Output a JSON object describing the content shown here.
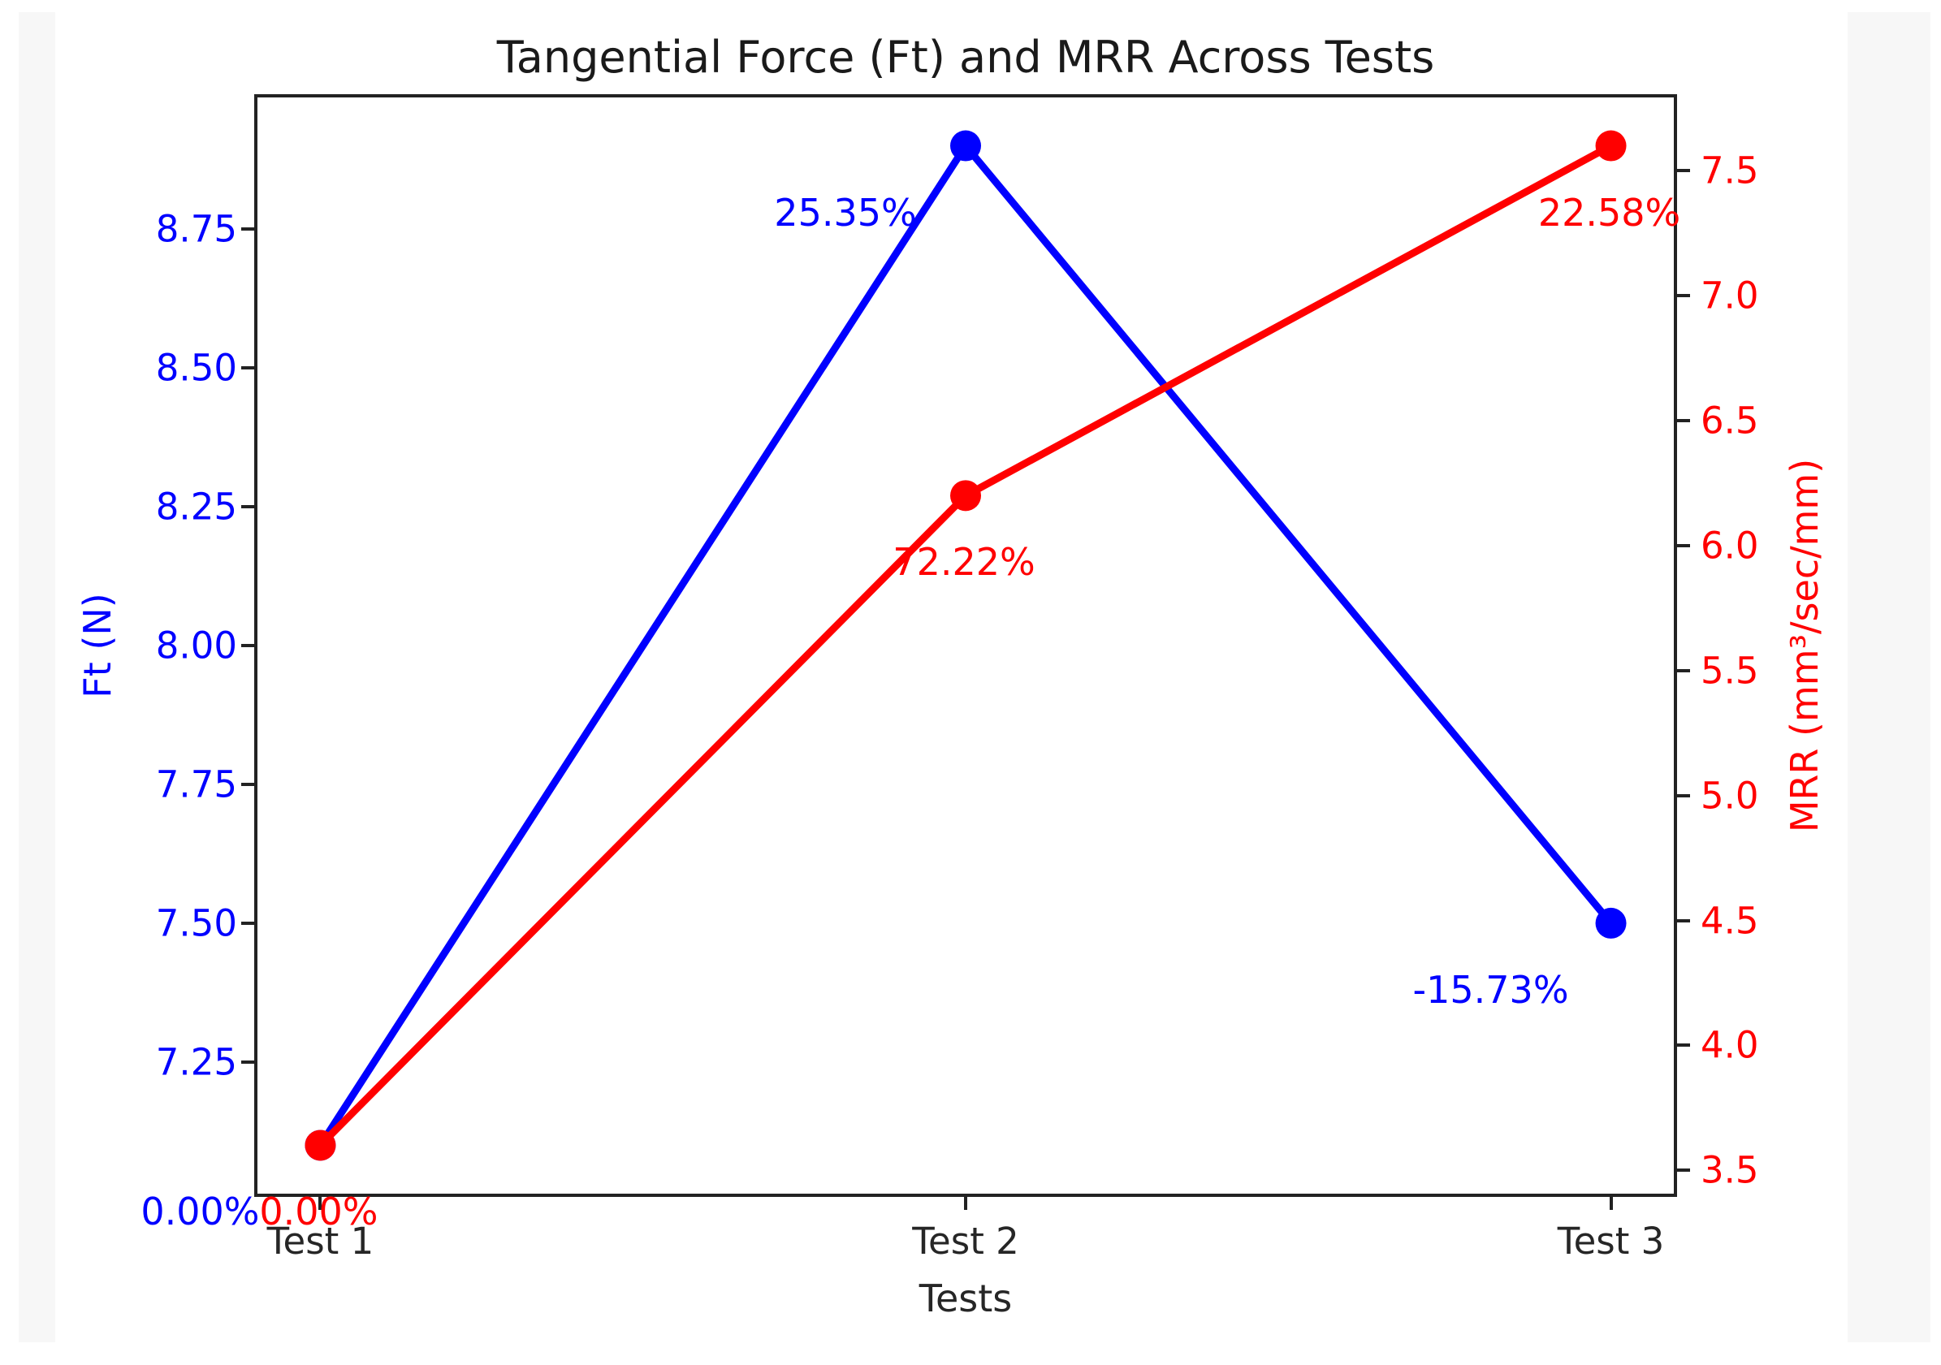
{
  "page": {
    "background_color": "#ffffff",
    "panel_color": "#f7f7f7"
  },
  "chart_data": {
    "type": "line",
    "title": "Tangential Force (Ft) and MRR Across Tests",
    "xlabel": "Tests",
    "categories": [
      "Test 1",
      "Test 2",
      "Test 3"
    ],
    "series": [
      {
        "name": "Ft",
        "axis": "left",
        "color": "#0000ff",
        "values": [
          7.1,
          8.9,
          7.5
        ],
        "annotations": [
          "0.00%",
          "25.35%",
          "-15.73%"
        ]
      },
      {
        "name": "MRR",
        "axis": "right",
        "color": "#ff0000",
        "values": [
          3.6,
          6.2,
          7.6
        ],
        "annotations": [
          "0.00%",
          "72.22%",
          "22.58%"
        ]
      }
    ],
    "left_axis": {
      "label": "Ft (N)",
      "color": "#0000ff",
      "range": [
        7.01,
        8.99
      ],
      "tick_labels": [
        "7.25",
        "7.50",
        "7.75",
        "8.00",
        "8.25",
        "8.50",
        "8.75"
      ],
      "ticks": [
        7.25,
        7.5,
        7.75,
        8.0,
        8.25,
        8.5,
        8.75
      ]
    },
    "right_axis": {
      "label": "MRR (mm³/sec/mm)",
      "color": "#ff0000",
      "range": [
        3.4,
        7.8
      ],
      "tick_labels": [
        "3.5",
        "4.0",
        "4.5",
        "5.0",
        "5.5",
        "6.0",
        "6.5",
        "7.0",
        "7.5"
      ],
      "ticks": [
        3.5,
        4.0,
        4.5,
        5.0,
        5.5,
        6.0,
        6.5,
        7.0,
        7.5
      ]
    },
    "grid": false,
    "legend": "none"
  }
}
